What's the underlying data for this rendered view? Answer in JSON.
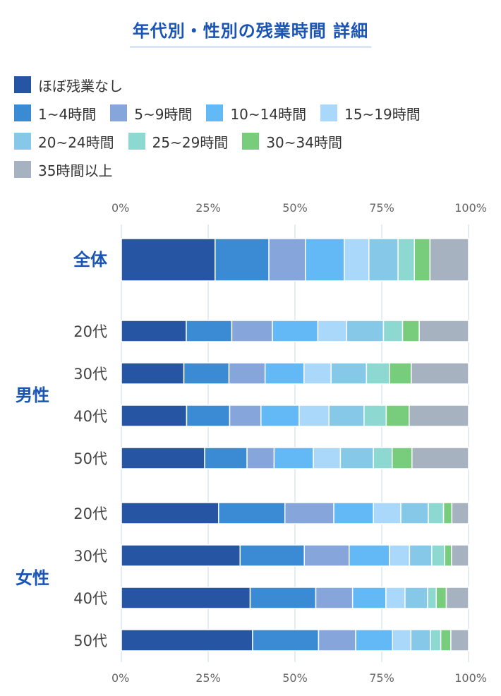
{
  "title": "年代別・性別の残業時間 詳細",
  "legend": {
    "rows": [
      [
        0
      ],
      [
        1,
        2,
        3,
        4
      ],
      [
        5,
        6,
        7
      ],
      [
        8
      ]
    ]
  },
  "chart_data": {
    "type": "bar",
    "orientation": "horizontal",
    "stacked": true,
    "normalized": true,
    "title": "年代別・性別の残業時間 詳細",
    "xlim": [
      0,
      100
    ],
    "xticks": [
      "0%",
      "25%",
      "50%",
      "75%",
      "100%"
    ],
    "grid": true,
    "legend_position": "top",
    "series": [
      {
        "name": "ほぼ残業なし",
        "color": "#2655a3"
      },
      {
        "name": "1~4時間",
        "color": "#3a8bd3"
      },
      {
        "name": "5~9時間",
        "color": "#86a5db"
      },
      {
        "name": "10~14時間",
        "color": "#62b9f5"
      },
      {
        "name": "15~19時間",
        "color": "#a9d8fb"
      },
      {
        "name": "20~24時間",
        "color": "#86c8e8"
      },
      {
        "name": "25~29時間",
        "color": "#8ed8d2"
      },
      {
        "name": "30~34時間",
        "color": "#78cd7c"
      },
      {
        "name": "35時間以上",
        "color": "#a6b2bf"
      }
    ],
    "groups": [
      {
        "label": "",
        "rows": [
          {
            "label": "全体",
            "emphasis": true,
            "values": [
              27,
              15.5,
              10.5,
              11.2,
              7.1,
              8.4,
              4.7,
              4.5,
              11.1
            ]
          }
        ]
      },
      {
        "label": "男性",
        "rows": [
          {
            "label": "20代",
            "values": [
              18.7,
              13.1,
              11.7,
              13.1,
              8.3,
              10.6,
              5.5,
              4.8,
              14.2
            ]
          },
          {
            "label": "30代",
            "values": [
              18.0,
              13.0,
              10.4,
              11.2,
              7.8,
              10.2,
              6.6,
              6.3,
              16.5
            ]
          },
          {
            "label": "40代",
            "values": [
              18.8,
              12.4,
              9.0,
              11.0,
              8.6,
              10.1,
              6.4,
              6.6,
              17.1
            ]
          },
          {
            "label": "50代",
            "values": [
              24.0,
              12.2,
              7.8,
              11.3,
              7.8,
              9.5,
              5.4,
              5.7,
              16.3
            ]
          }
        ]
      },
      {
        "label": "女性",
        "rows": [
          {
            "label": "20代",
            "values": [
              28.0,
              19.1,
              14.1,
              11.4,
              7.9,
              7.9,
              4.4,
              2.4,
              4.8
            ]
          },
          {
            "label": "30代",
            "values": [
              34.2,
              18.5,
              12.9,
              11.6,
              5.8,
              6.4,
              3.7,
              2.0,
              4.9
            ]
          },
          {
            "label": "40代",
            "values": [
              37.1,
              18.9,
              10.6,
              9.6,
              5.5,
              6.5,
              2.5,
              2.9,
              6.4
            ]
          },
          {
            "label": "50代",
            "values": [
              37.8,
              19.0,
              10.7,
              10.6,
              5.3,
              5.6,
              3.0,
              2.9,
              5.1
            ]
          }
        ]
      }
    ]
  }
}
